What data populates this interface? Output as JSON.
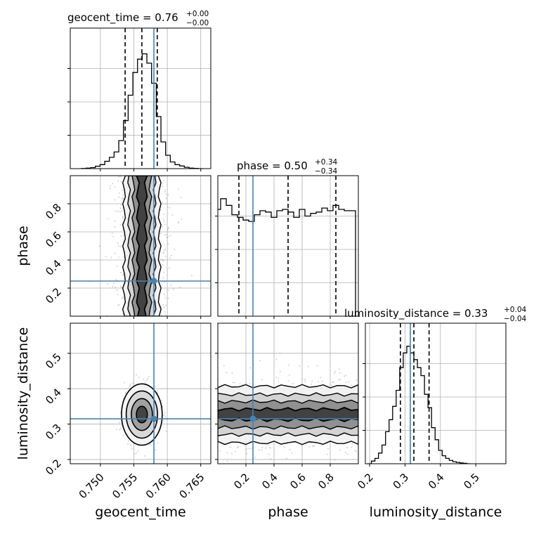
{
  "chart_data": {
    "type": "corner",
    "parameters": [
      "geocent_time",
      "phase",
      "luminosity_distance"
    ],
    "truth": {
      "geocent_time": 0.758,
      "phase": 0.25,
      "luminosity_distance": 0.315
    },
    "truth_color": "#4682b4",
    "grid": true,
    "titles": [
      {
        "param": "geocent_time",
        "text": "geocent_time = 0.76",
        "plus": "+0.00",
        "minus": "−0.00"
      },
      {
        "param": "phase",
        "text": "phase = 0.50",
        "plus": "+0.34",
        "minus": "−0.34"
      },
      {
        "param": "luminosity_distance",
        "text": "luminosity_distance = 0.33",
        "plus": "+0.04",
        "minus": "−0.04"
      }
    ],
    "axes": {
      "geocent_time": {
        "label": "geocent_time",
        "range": [
          0.7455,
          0.7665
        ],
        "ticks": [
          0.75,
          0.755,
          0.76,
          0.765
        ],
        "tick_labels": [
          "0.750",
          "0.755",
          "0.760",
          "0.765"
        ]
      },
      "phase": {
        "label": "phase",
        "range": [
          0.0,
          1.0
        ],
        "ticks": [
          0.2,
          0.4,
          0.6,
          0.8
        ],
        "tick_labels": [
          "0.2",
          "0.4",
          "0.6",
          "0.8"
        ]
      },
      "luminosity_distance": {
        "label": "luminosity_distance",
        "range": [
          0.188,
          0.585
        ],
        "ticks": [
          0.2,
          0.3,
          0.4,
          0.5
        ],
        "tick_labels": [
          "0.2",
          "0.3",
          "0.4",
          "0.5"
        ]
      }
    },
    "histograms": {
      "geocent_time": {
        "quantiles": [
          0.7537,
          0.7562,
          0.7585
        ],
        "bins": [
          [
            0.7475,
            0.001
          ],
          [
            0.7482,
            0.004
          ],
          [
            0.7489,
            0.008
          ],
          [
            0.7496,
            0.018
          ],
          [
            0.7503,
            0.03
          ],
          [
            0.751,
            0.055
          ],
          [
            0.7517,
            0.085
          ],
          [
            0.7524,
            0.125
          ],
          [
            0.7531,
            0.21
          ],
          [
            0.7538,
            0.36
          ],
          [
            0.7545,
            0.55
          ],
          [
            0.7552,
            0.72
          ],
          [
            0.7559,
            0.82
          ],
          [
            0.7566,
            0.86
          ],
          [
            0.7573,
            0.79
          ],
          [
            0.758,
            0.64
          ],
          [
            0.7587,
            0.39
          ],
          [
            0.7594,
            0.2
          ],
          [
            0.7601,
            0.1
          ],
          [
            0.7608,
            0.05
          ],
          [
            0.7615,
            0.03
          ],
          [
            0.7622,
            0.02
          ],
          [
            0.7629,
            0.01
          ],
          [
            0.7636,
            0.004
          ],
          [
            0.7643,
            0.002
          ],
          [
            0.765,
            0.0
          ]
        ]
      },
      "phase": {
        "quantiles": [
          0.15,
          0.5,
          0.84
        ],
        "bins": [
          [
            0.0,
            0.8
          ],
          [
            0.04,
            0.88
          ],
          [
            0.08,
            0.83
          ],
          [
            0.12,
            0.76
          ],
          [
            0.16,
            0.74
          ],
          [
            0.2,
            0.72
          ],
          [
            0.24,
            0.71
          ],
          [
            0.28,
            0.76
          ],
          [
            0.32,
            0.79
          ],
          [
            0.36,
            0.78
          ],
          [
            0.4,
            0.74
          ],
          [
            0.44,
            0.79
          ],
          [
            0.48,
            0.8
          ],
          [
            0.52,
            0.78
          ],
          [
            0.56,
            0.74
          ],
          [
            0.6,
            0.8
          ],
          [
            0.64,
            0.75
          ],
          [
            0.68,
            0.77
          ],
          [
            0.72,
            0.78
          ],
          [
            0.76,
            0.81
          ],
          [
            0.8,
            0.79
          ],
          [
            0.84,
            0.83
          ],
          [
            0.88,
            0.8
          ],
          [
            0.92,
            0.79
          ],
          [
            0.96,
            0.79
          ]
        ]
      },
      "luminosity_distance": {
        "quantiles": [
          0.287,
          0.325,
          0.368
        ],
        "bins": [
          [
            0.2,
            0.0
          ],
          [
            0.21,
            0.02
          ],
          [
            0.22,
            0.04
          ],
          [
            0.23,
            0.08
          ],
          [
            0.24,
            0.14
          ],
          [
            0.25,
            0.24
          ],
          [
            0.26,
            0.33
          ],
          [
            0.27,
            0.43
          ],
          [
            0.28,
            0.55
          ],
          [
            0.29,
            0.72
          ],
          [
            0.3,
            0.83
          ],
          [
            0.31,
            0.88
          ],
          [
            0.32,
            0.83
          ],
          [
            0.33,
            0.78
          ],
          [
            0.34,
            0.72
          ],
          [
            0.35,
            0.66
          ],
          [
            0.36,
            0.52
          ],
          [
            0.37,
            0.42
          ],
          [
            0.38,
            0.27
          ],
          [
            0.39,
            0.18
          ],
          [
            0.4,
            0.1
          ],
          [
            0.41,
            0.06
          ],
          [
            0.42,
            0.04
          ],
          [
            0.43,
            0.025
          ],
          [
            0.44,
            0.015
          ],
          [
            0.45,
            0.01
          ],
          [
            0.46,
            0.006
          ],
          [
            0.47,
            0.003
          ],
          [
            0.48,
            0.0
          ]
        ]
      }
    },
    "joint": {
      "phase_vs_geocent_time": {
        "x_center": 0.7562,
        "x_sigma": 0.0012,
        "y_range": [
          0.0,
          1.0
        ]
      },
      "luminosity_distance_vs_geocent_time": {
        "x_center": 0.7562,
        "x_sigma": 0.0013,
        "y_center": 0.327,
        "y_sigma": 0.037
      },
      "luminosity_distance_vs_phase": {
        "x_range": [
          0.0,
          1.0
        ],
        "y_center": 0.327,
        "y_sigma": 0.037
      }
    }
  }
}
